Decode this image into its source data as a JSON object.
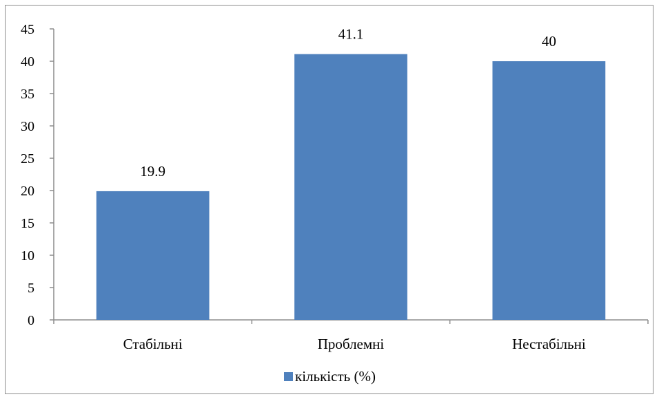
{
  "chart_data": {
    "type": "bar",
    "categories": [
      "Стабільні",
      "Проблемні",
      "Нестабільні"
    ],
    "series": [
      {
        "name": "кількість (%)",
        "values": [
          19.9,
          41.1,
          40
        ],
        "color": "#4f81bd"
      }
    ],
    "data_labels": [
      "19.9",
      "41.1",
      "40"
    ],
    "ylim": [
      0,
      45
    ],
    "yticks": [
      0,
      5,
      10,
      15,
      20,
      25,
      30,
      35,
      40,
      45
    ],
    "grid": false,
    "legend_position": "bottom"
  }
}
